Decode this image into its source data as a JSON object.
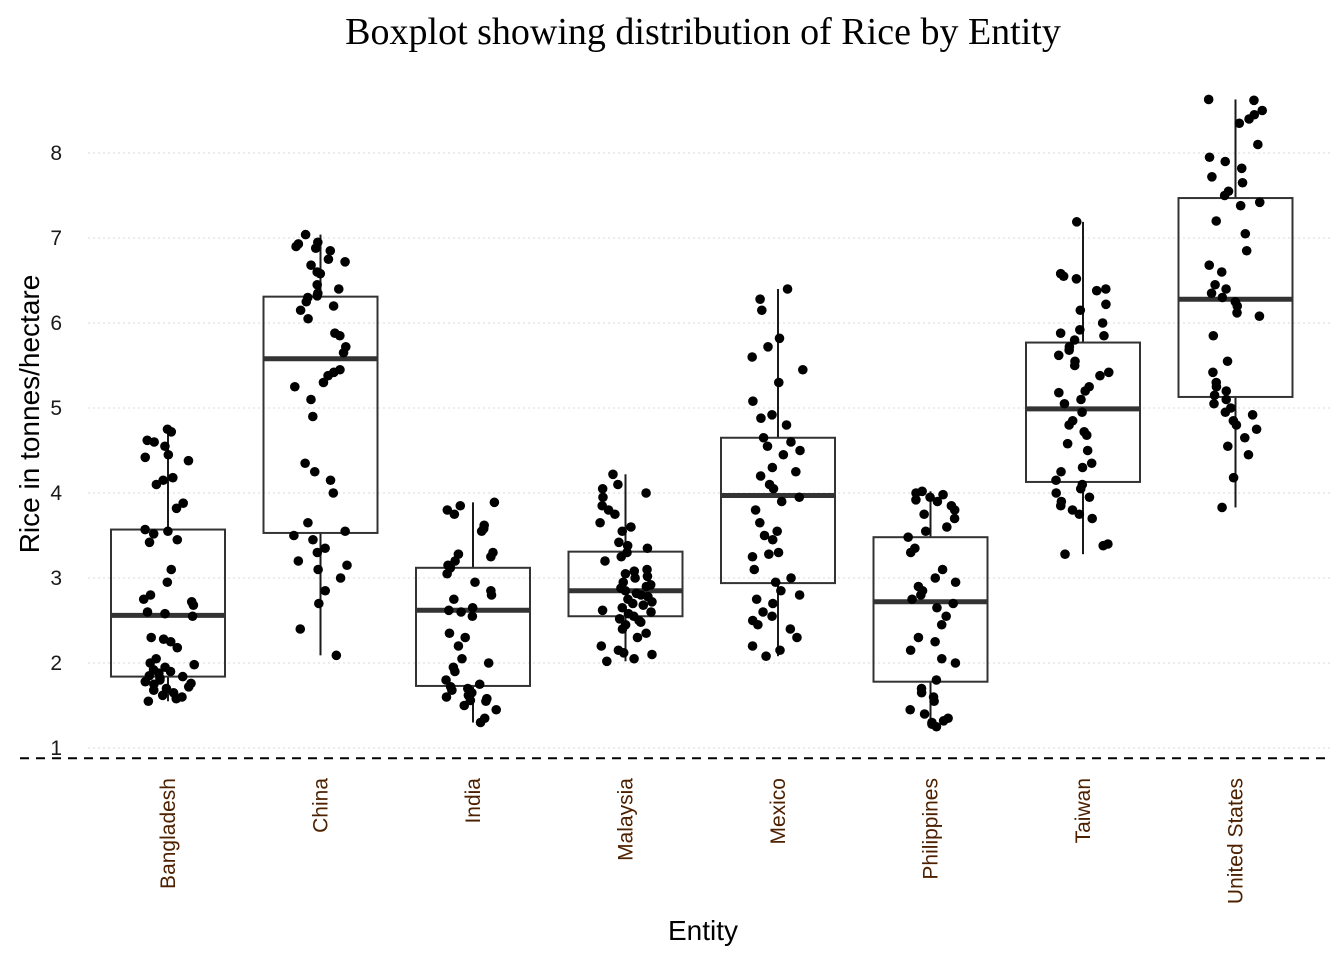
{
  "chart_data": {
    "type": "boxplot",
    "title": "Boxplot showing distribution of Rice by Entity",
    "xlabel": "Entity",
    "ylabel": "Rice in tonnes/hectare",
    "ylim": [
      0.9,
      8.7
    ],
    "yticks": [
      1,
      2,
      3,
      4,
      5,
      6,
      7,
      8
    ],
    "grid": "horizontal dotted",
    "reference_line": 0.88,
    "categories": [
      "Bangladesh",
      "China",
      "India",
      "Malaysia",
      "Mexico",
      "Philippines",
      "Taiwan",
      "United States"
    ],
    "boxes": [
      {
        "category": "Bangladesh",
        "min": 1.55,
        "q1": 1.84,
        "median": 2.56,
        "q3": 3.57,
        "max": 4.75
      },
      {
        "category": "China",
        "min": 2.09,
        "q1": 3.53,
        "median": 5.58,
        "q3": 6.31,
        "max": 7.04
      },
      {
        "category": "India",
        "min": 1.3,
        "q1": 1.73,
        "median": 2.62,
        "q3": 3.12,
        "max": 3.89
      },
      {
        "category": "Malaysia",
        "min": 2.02,
        "q1": 2.55,
        "median": 2.85,
        "q3": 3.31,
        "max": 4.22
      },
      {
        "category": "Mexico",
        "min": 2.08,
        "q1": 2.94,
        "median": 3.97,
        "q3": 4.65,
        "max": 6.4
      },
      {
        "category": "Philippines",
        "min": 1.25,
        "q1": 1.78,
        "median": 2.72,
        "q3": 3.48,
        "max": 4.02
      },
      {
        "category": "Taiwan",
        "min": 3.28,
        "q1": 4.13,
        "median": 4.99,
        "q3": 5.77,
        "max": 7.19
      },
      {
        "category": "United States",
        "min": 3.83,
        "q1": 5.13,
        "median": 6.28,
        "q3": 7.47,
        "max": 8.63
      }
    ],
    "points": [
      [
        4.75,
        4.72,
        4.62,
        4.6,
        4.55,
        4.45,
        4.42,
        4.38,
        4.18,
        4.15,
        4.1,
        3.88,
        3.82,
        3.57,
        3.55,
        3.52,
        3.45,
        3.42,
        3.1,
        2.95,
        2.8,
        2.75,
        2.72,
        2.68,
        2.6,
        2.58,
        2.55,
        2.3,
        2.28,
        2.25,
        2.18,
        2.05,
        2.0,
        1.98,
        1.95,
        1.92,
        1.9,
        1.88,
        1.85,
        1.84,
        1.82,
        1.8,
        1.78,
        1.76,
        1.75,
        1.72,
        1.7,
        1.68,
        1.65,
        1.62,
        1.6,
        1.58,
        1.55
      ],
      [
        7.04,
        6.95,
        6.93,
        6.9,
        6.88,
        6.85,
        6.75,
        6.72,
        6.68,
        6.6,
        6.58,
        6.45,
        6.4,
        6.35,
        6.32,
        6.3,
        6.25,
        6.2,
        6.15,
        6.05,
        5.88,
        5.85,
        5.72,
        5.65,
        5.45,
        5.42,
        5.38,
        5.3,
        5.25,
        5.1,
        4.9,
        4.35,
        4.25,
        4.15,
        4.0,
        3.65,
        3.55,
        3.5,
        3.45,
        3.35,
        3.3,
        3.2,
        3.15,
        3.1,
        3.0,
        2.85,
        2.7,
        2.4,
        2.09
      ],
      [
        3.89,
        3.85,
        3.8,
        3.75,
        3.62,
        3.58,
        3.55,
        3.3,
        3.28,
        3.25,
        3.2,
        3.15,
        3.12,
        3.05,
        2.95,
        2.85,
        2.8,
        2.75,
        2.65,
        2.62,
        2.6,
        2.55,
        2.35,
        2.3,
        2.2,
        2.05,
        2.0,
        1.95,
        1.9,
        1.8,
        1.75,
        1.72,
        1.7,
        1.68,
        1.65,
        1.62,
        1.6,
        1.58,
        1.56,
        1.55,
        1.5,
        1.45,
        1.35,
        1.3
      ],
      [
        4.22,
        4.1,
        4.05,
        4.0,
        3.95,
        3.85,
        3.8,
        3.75,
        3.65,
        3.6,
        3.55,
        3.42,
        3.38,
        3.35,
        3.3,
        3.25,
        3.2,
        3.1,
        3.08,
        3.05,
        3.02,
        3.0,
        2.95,
        2.92,
        2.9,
        2.88,
        2.85,
        2.82,
        2.8,
        2.78,
        2.75,
        2.72,
        2.7,
        2.68,
        2.65,
        2.62,
        2.6,
        2.58,
        2.55,
        2.52,
        2.5,
        2.48,
        2.45,
        2.4,
        2.35,
        2.3,
        2.2,
        2.15,
        2.12,
        2.1,
        2.05,
        2.02
      ],
      [
        6.4,
        6.28,
        6.15,
        5.82,
        5.72,
        5.6,
        5.45,
        5.3,
        5.08,
        4.92,
        4.88,
        4.8,
        4.65,
        4.6,
        4.55,
        4.5,
        4.45,
        4.3,
        4.25,
        4.2,
        4.1,
        4.05,
        3.95,
        3.9,
        3.8,
        3.65,
        3.55,
        3.5,
        3.45,
        3.3,
        3.28,
        3.25,
        3.1,
        3.0,
        2.95,
        2.85,
        2.8,
        2.75,
        2.7,
        2.6,
        2.55,
        2.5,
        2.45,
        2.4,
        2.3,
        2.2,
        2.15,
        2.08
      ],
      [
        4.02,
        4.0,
        3.98,
        3.95,
        3.92,
        3.9,
        3.85,
        3.8,
        3.75,
        3.7,
        3.6,
        3.55,
        3.48,
        3.35,
        3.3,
        3.1,
        3.0,
        2.95,
        2.9,
        2.85,
        2.8,
        2.75,
        2.7,
        2.65,
        2.55,
        2.45,
        2.3,
        2.25,
        2.15,
        2.05,
        2.0,
        1.8,
        1.7,
        1.65,
        1.6,
        1.55,
        1.45,
        1.4,
        1.35,
        1.32,
        1.3,
        1.28,
        1.25
      ],
      [
        7.19,
        6.58,
        6.55,
        6.52,
        6.4,
        6.38,
        6.22,
        6.15,
        6.0,
        5.92,
        5.88,
        5.85,
        5.8,
        5.72,
        5.68,
        5.62,
        5.55,
        5.5,
        5.42,
        5.38,
        5.25,
        5.2,
        5.18,
        5.1,
        5.05,
        4.95,
        4.85,
        4.8,
        4.72,
        4.68,
        4.58,
        4.5,
        4.35,
        4.3,
        4.25,
        4.15,
        4.1,
        4.05,
        4.0,
        3.95,
        3.9,
        3.85,
        3.8,
        3.75,
        3.7,
        3.4,
        3.38,
        3.28
      ],
      [
        8.63,
        8.62,
        8.5,
        8.45,
        8.4,
        8.35,
        8.1,
        7.95,
        7.9,
        7.82,
        7.72,
        7.65,
        7.55,
        7.5,
        7.42,
        7.38,
        7.2,
        7.05,
        6.85,
        6.68,
        6.6,
        6.45,
        6.4,
        6.35,
        6.3,
        6.25,
        6.2,
        6.12,
        6.08,
        5.85,
        5.55,
        5.42,
        5.3,
        5.25,
        5.2,
        5.15,
        5.1,
        5.05,
        5.0,
        4.95,
        4.92,
        4.85,
        4.8,
        4.75,
        4.65,
        4.55,
        4.45,
        4.18,
        3.83
      ]
    ]
  }
}
